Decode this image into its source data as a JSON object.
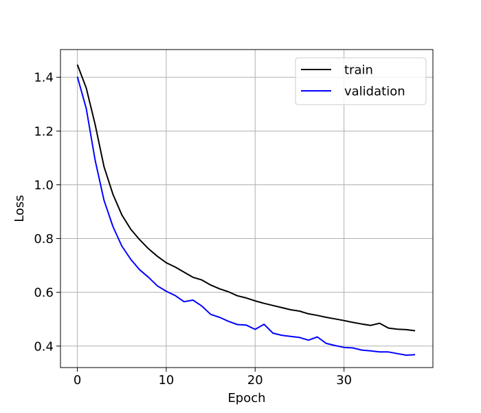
{
  "chart_data": {
    "type": "line",
    "title": "",
    "xlabel": "Epoch",
    "ylabel": "Loss",
    "xlim": [
      -1.9,
      40.0
    ],
    "ylim": [
      0.32,
      1.503
    ],
    "xticks": [
      0,
      10,
      20,
      30
    ],
    "xtick_labels": [
      "0",
      "10",
      "20",
      "30"
    ],
    "yticks": [
      0.4,
      0.6,
      0.8,
      1.0,
      1.2,
      1.4
    ],
    "ytick_labels": [
      "0.4",
      "0.6",
      "0.8",
      "1.0",
      "1.2",
      "1.4"
    ],
    "grid": true,
    "legend_position": "top-right",
    "x": [
      0,
      1,
      2,
      3,
      4,
      5,
      6,
      7,
      8,
      9,
      10,
      11,
      12,
      13,
      14,
      15,
      16,
      17,
      18,
      19,
      20,
      21,
      22,
      23,
      24,
      25,
      26,
      27,
      28,
      29,
      30,
      31,
      32,
      33,
      34,
      35,
      36,
      37,
      38
    ],
    "series": [
      {
        "name": "train",
        "color": "#000000",
        "values": [
          1.447,
          1.36,
          1.225,
          1.067,
          0.965,
          0.888,
          0.835,
          0.796,
          0.762,
          0.734,
          0.71,
          0.694,
          0.675,
          0.656,
          0.646,
          0.627,
          0.613,
          0.602,
          0.587,
          0.579,
          0.568,
          0.559,
          0.551,
          0.543,
          0.535,
          0.53,
          0.52,
          0.514,
          0.507,
          0.501,
          0.495,
          0.488,
          0.482,
          0.477,
          0.485,
          0.467,
          0.463,
          0.461,
          0.457
        ]
      },
      {
        "name": "validation",
        "color": "#0000ff",
        "values": [
          1.402,
          1.284,
          1.092,
          0.942,
          0.845,
          0.772,
          0.723,
          0.684,
          0.656,
          0.624,
          0.604,
          0.588,
          0.565,
          0.571,
          0.549,
          0.518,
          0.507,
          0.492,
          0.48,
          0.478,
          0.462,
          0.481,
          0.448,
          0.44,
          0.436,
          0.432,
          0.422,
          0.434,
          0.41,
          0.402,
          0.395,
          0.393,
          0.385,
          0.382,
          0.378,
          0.378,
          0.372,
          0.366,
          0.368
        ]
      }
    ]
  }
}
